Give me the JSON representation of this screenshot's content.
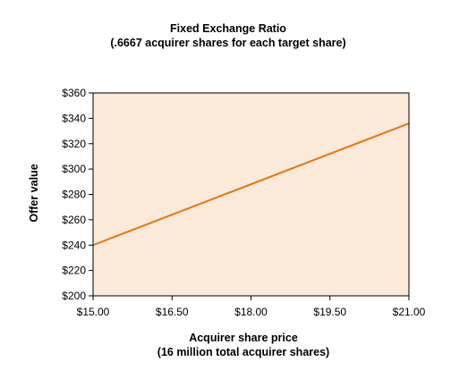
{
  "chart_data": {
    "type": "line",
    "title": "Fixed Exchange Ratio",
    "subtitle": "(.6667 acquirer shares for each target share)",
    "xlabel": "Acquirer share price",
    "xlabel_sub": "(16 million total acquirer shares)",
    "ylabel": "Offer value",
    "xlim": [
      15,
      21
    ],
    "ylim": [
      200,
      360
    ],
    "x_ticks": [
      15,
      16.5,
      18,
      19.5,
      21
    ],
    "x_tick_labels": [
      "$15.00",
      "$16.50",
      "$18.00",
      "$19.50",
      "$21.00"
    ],
    "y_ticks": [
      200,
      220,
      240,
      260,
      280,
      300,
      320,
      340,
      360
    ],
    "y_tick_labels": [
      "$200",
      "$220",
      "$240",
      "$260",
      "$280",
      "$300",
      "$320",
      "$340",
      "$360"
    ],
    "grid": false,
    "colors": {
      "plot_background": "#fbe9da",
      "line": "#e07818",
      "axis": "#000000"
    },
    "series": [
      {
        "x": [
          15,
          21
        ],
        "y": [
          240,
          336
        ]
      }
    ]
  }
}
